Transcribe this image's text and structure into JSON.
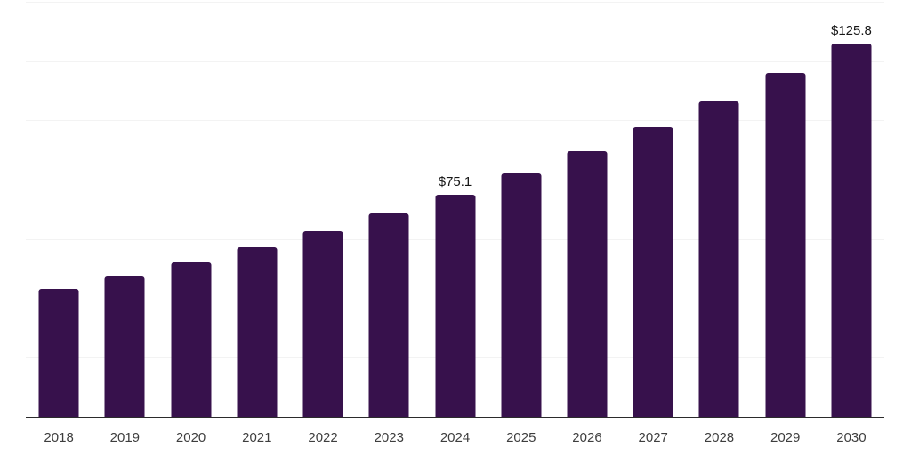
{
  "chart_data": {
    "type": "bar",
    "title": "",
    "xlabel": "",
    "ylabel": "",
    "categories": [
      "2018",
      "2019",
      "2020",
      "2021",
      "2022",
      "2023",
      "2024",
      "2025",
      "2026",
      "2027",
      "2028",
      "2029",
      "2030"
    ],
    "values": [
      43.2,
      47.4,
      52.2,
      57.3,
      62.7,
      68.6,
      75.1,
      82.1,
      89.6,
      97.7,
      106.4,
      116.0,
      125.8
    ],
    "data_labels": [
      "",
      "",
      "",
      "",
      "",
      "",
      "$75.1",
      "",
      "",
      "",
      "",
      "",
      "$125.8"
    ],
    "ylim": [
      0,
      140
    ],
    "grid_step": 20,
    "grid": "horizontal-only",
    "legend_position": "none",
    "y_axis_tick_labels_visible": false
  },
  "colors": {
    "background": "#ffffff",
    "bar": "#37114c",
    "gridline": "#f3f3f3",
    "axis_line": "#2b2b2b",
    "tick_label": "#3e3e3e",
    "data_label": "#161616"
  }
}
